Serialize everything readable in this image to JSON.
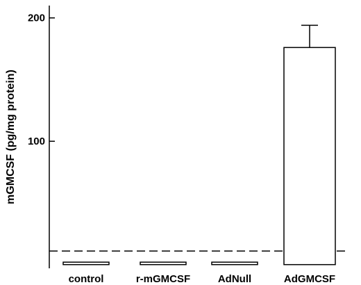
{
  "chart_data": {
    "type": "bar",
    "title": "",
    "xlabel": "",
    "ylabel": "mGMCSF (pg/mg protein)",
    "categories": [
      "control",
      "r-mGMCSF",
      "AdNull",
      "AdGMCSF"
    ],
    "values": [
      2,
      2,
      2,
      176
    ],
    "error_upper": [
      null,
      null,
      null,
      194
    ],
    "y_ticks": [
      100,
      200
    ],
    "ylim": [
      -3,
      210
    ],
    "reference_line": {
      "value": 11,
      "style": "dashed"
    },
    "grid": false,
    "legend": "none",
    "colors": {
      "bar_fill": "#ffffff",
      "bar_stroke": "#000000",
      "axis": "#000000"
    }
  }
}
